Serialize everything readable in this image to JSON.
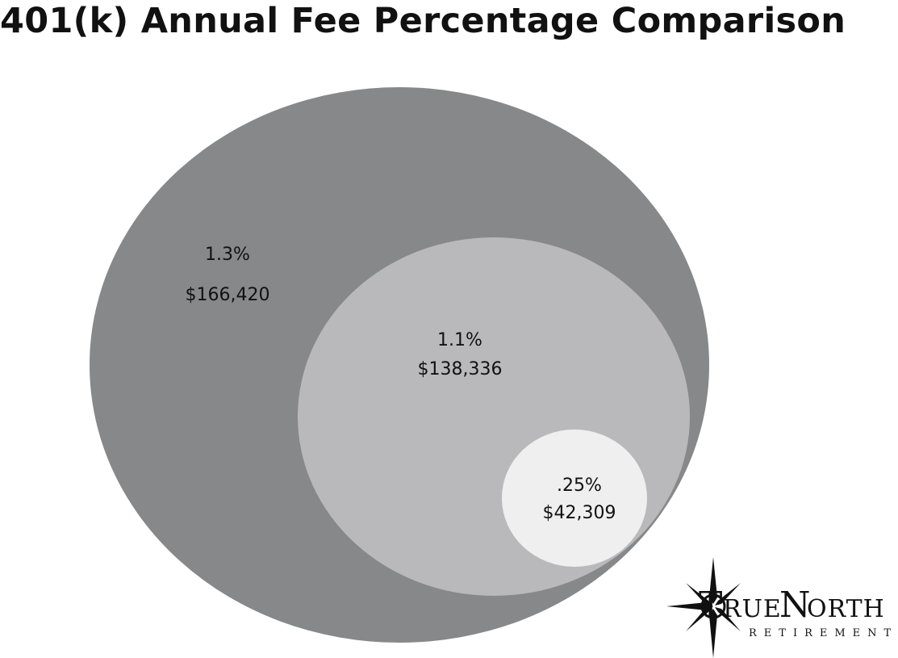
{
  "title": "401(k) Annual Fee Percentage Comparison",
  "chart_data": {
    "type": "bubble",
    "title": "401(k) Annual Fee Percentage Comparison",
    "series": [
      {
        "fee_percent": "1.3%",
        "fee_amount": "$166,420",
        "value": 166420,
        "color": "#878889"
      },
      {
        "fee_percent": "1.1%",
        "fee_amount": "$138,336",
        "value": 138336,
        "color": "#b9b9bb"
      },
      {
        "fee_percent": ".25%",
        "fee_amount": "$42,309",
        "value": 42309,
        "color": "#efeff0"
      }
    ]
  },
  "logo": {
    "name": "TrueNorth Retirement",
    "text_main": "TRUENORTH",
    "text_sub": "RETIREMENT"
  }
}
